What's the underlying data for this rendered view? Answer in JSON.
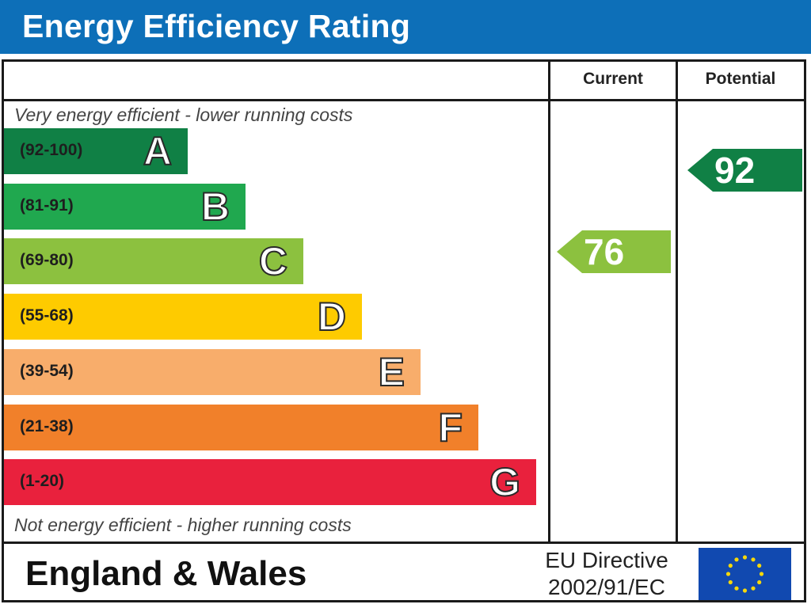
{
  "header": {
    "title": "Energy Efficiency Rating"
  },
  "columns": {
    "current": "Current",
    "potential": "Potential"
  },
  "notes": {
    "top": "Very energy efficient - lower running costs",
    "bottom": "Not energy efficient - higher running costs"
  },
  "footer": {
    "region": "England & Wales",
    "directive_line1": "EU Directive",
    "directive_line2": "2002/91/EC"
  },
  "colors": {
    "title_bar": "#0d6fb8",
    "A": "#108045",
    "B": "#20a84f",
    "C": "#8cc13f",
    "D": "#fecb00",
    "E": "#f8ad6b",
    "F": "#f1802a",
    "G": "#e9213d",
    "eu_blue": "#1149b0",
    "eu_star": "#f6d80a"
  },
  "chart_data": {
    "type": "bar",
    "title": "Energy Efficiency Rating",
    "bands": [
      {
        "letter": "A",
        "range": "(92-100)",
        "min": 92,
        "max": 100
      },
      {
        "letter": "B",
        "range": "(81-91)",
        "min": 81,
        "max": 91
      },
      {
        "letter": "C",
        "range": "(69-80)",
        "min": 69,
        "max": 80
      },
      {
        "letter": "D",
        "range": "(55-68)",
        "min": 55,
        "max": 68
      },
      {
        "letter": "E",
        "range": "(39-54)",
        "min": 39,
        "max": 54
      },
      {
        "letter": "F",
        "range": "(21-38)",
        "min": 21,
        "max": 38
      },
      {
        "letter": "G",
        "range": "(1-20)",
        "min": 1,
        "max": 20
      }
    ],
    "current": {
      "value": 76,
      "band": "C"
    },
    "potential": {
      "value": 92,
      "band": "A"
    }
  }
}
